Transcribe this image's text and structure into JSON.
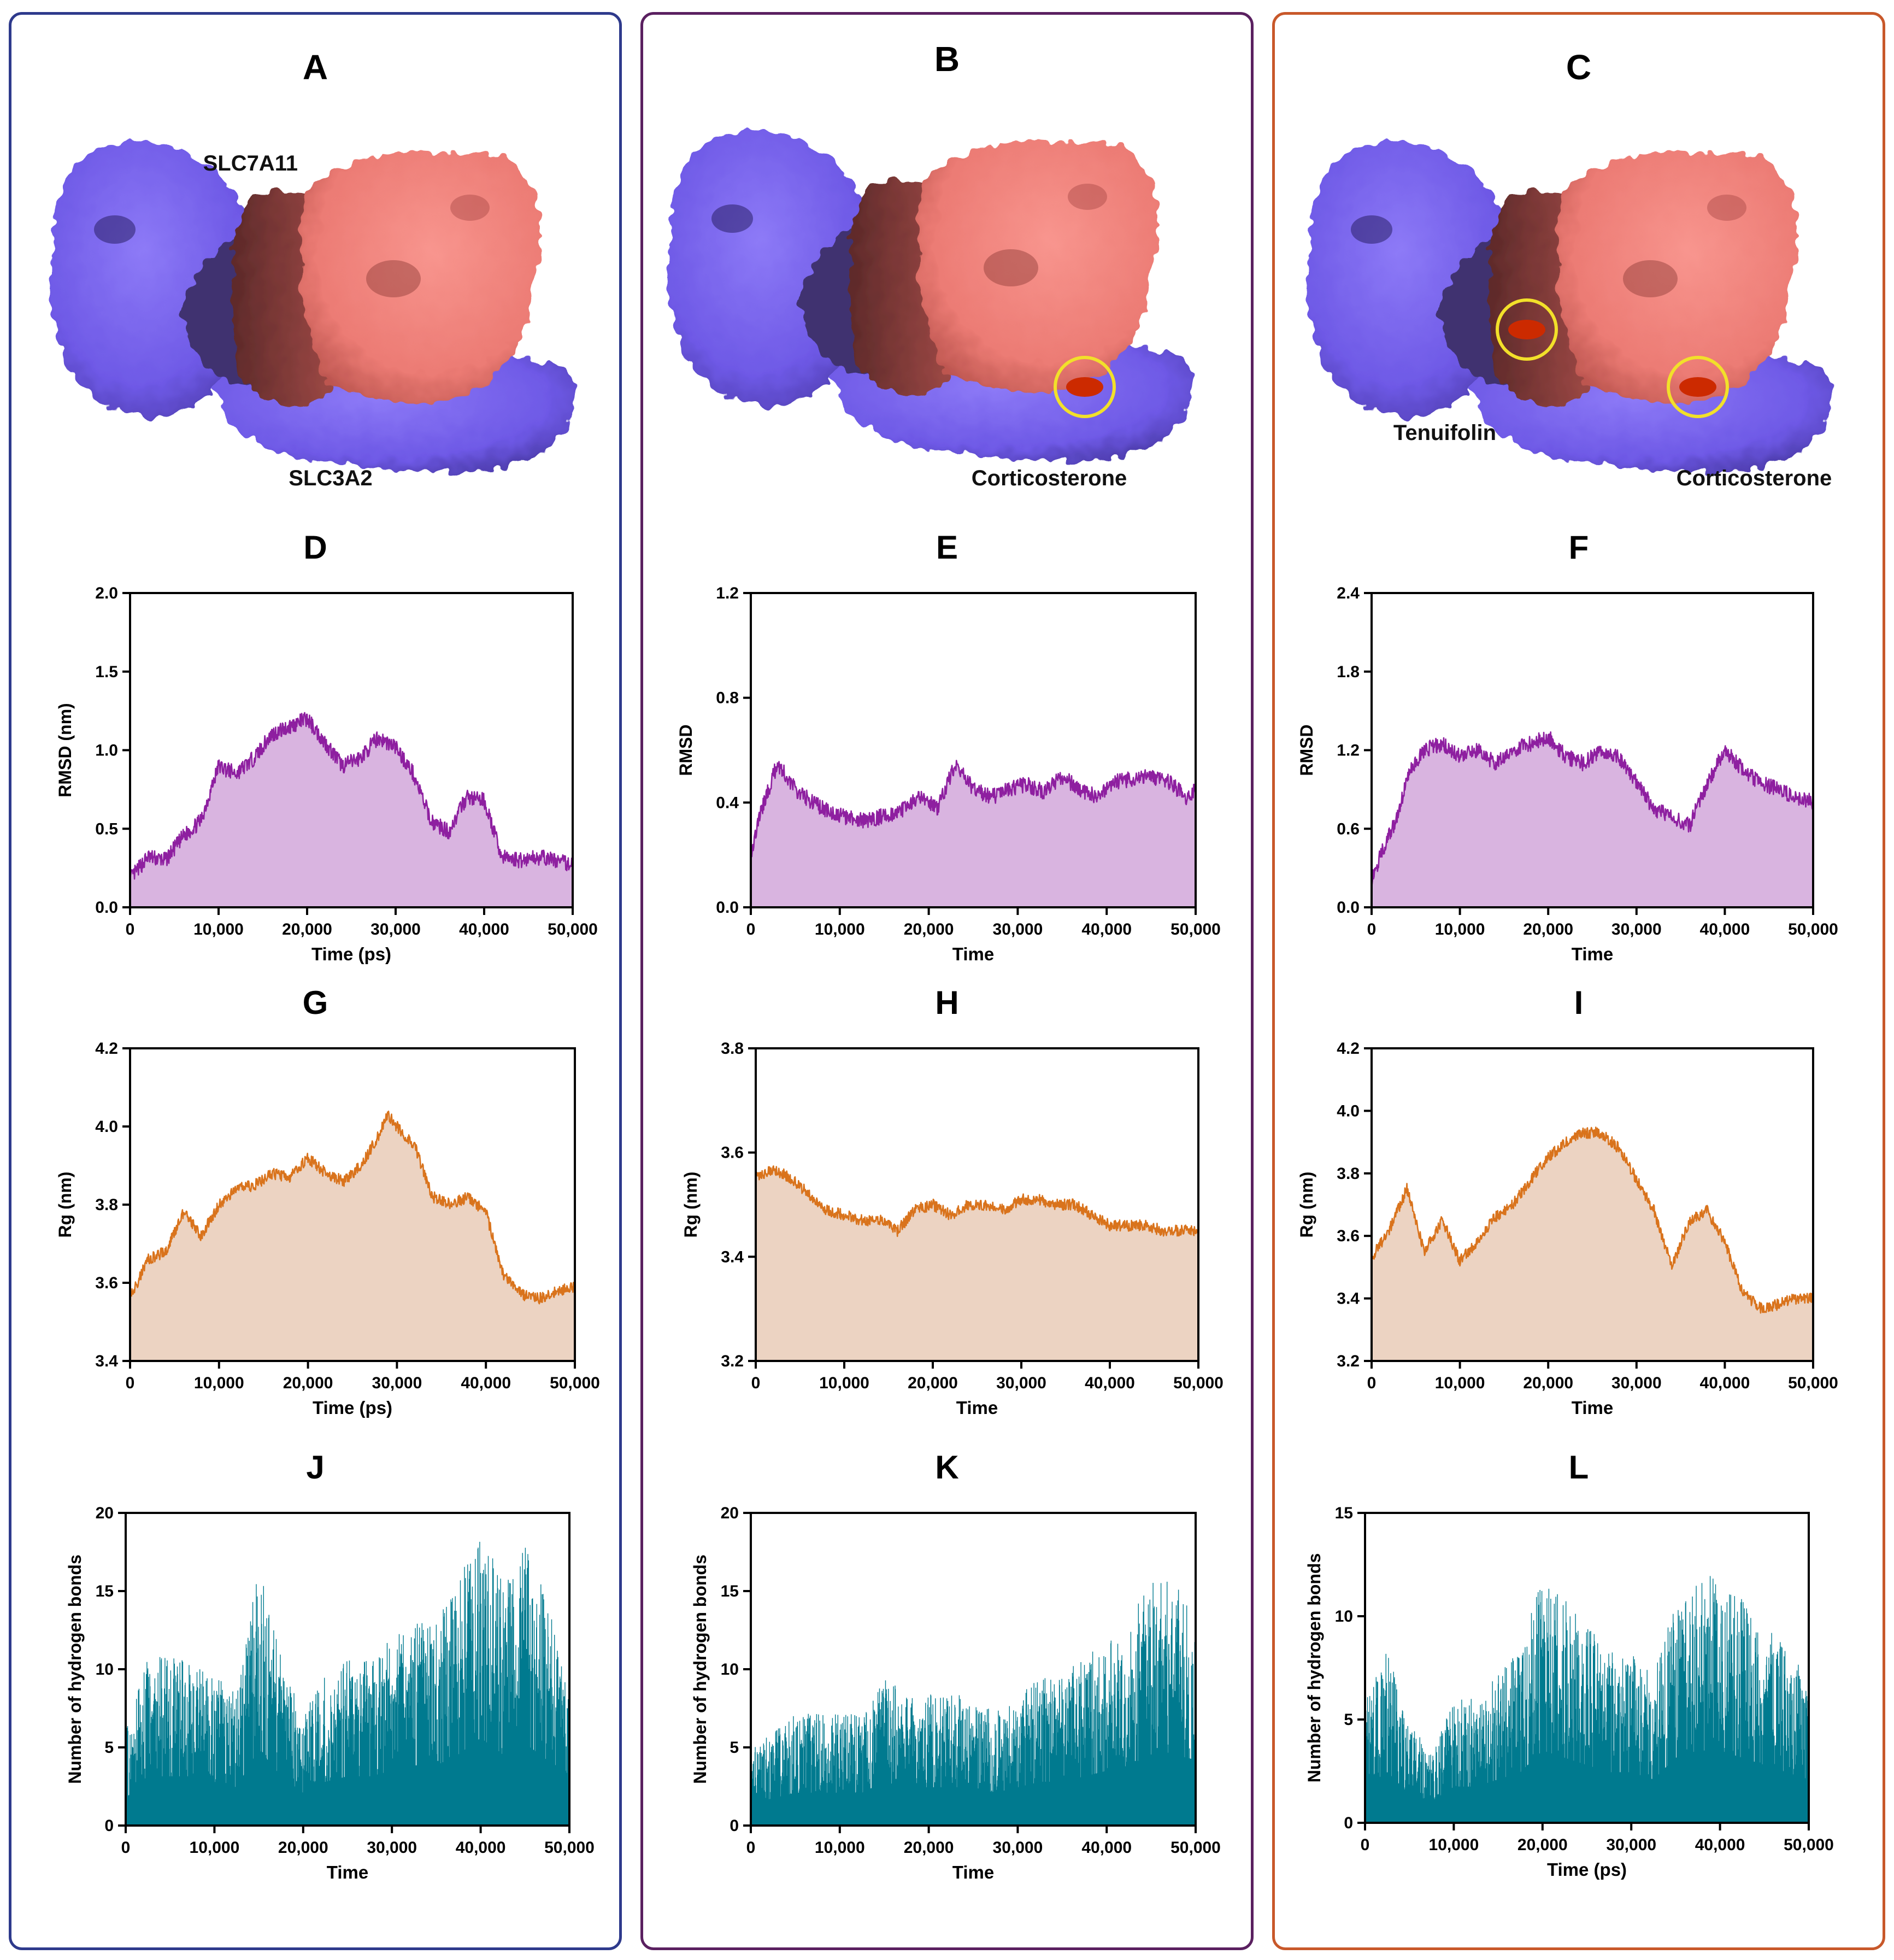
{
  "colors": {
    "frame_a": "#2e3a8c",
    "frame_b": "#5a2060",
    "frame_c": "#c8582a",
    "rmsd_line": "#8e1fa0",
    "rmsd_fill": "#d9b4e0",
    "rg_line": "#d9731c",
    "rg_fill": "#ecd3c2",
    "hbond_fill": "#007a8f",
    "protein_blue": "#7c66f0",
    "protein_salmon": "#f0807a",
    "ligand": "#cc2a00",
    "highlight_circle": "#f2e02a"
  },
  "structures": [
    {
      "letter": "A",
      "labels": [
        "SLC7A11",
        "SLC3A2"
      ],
      "ligand_sites": 0
    },
    {
      "letter": "B",
      "labels": [
        "Corticosterone"
      ],
      "ligand_sites": 1
    },
    {
      "letter": "C",
      "labels": [
        "Tenuifolin",
        "Corticosterone"
      ],
      "ligand_sites": 2
    }
  ],
  "chart_data": [
    {
      "panel": "D",
      "type": "area",
      "xlabel": "Time (ps)",
      "ylabel": "RMSD (nm)",
      "xlim": [
        0,
        50000
      ],
      "ylim": [
        0,
        2.0
      ],
      "xticks": [
        "0",
        "10,000",
        "20,000",
        "30,000",
        "40,000",
        "50,000"
      ],
      "yticks": [
        "0.0",
        "0.5",
        "1.0",
        "1.5",
        "2.0"
      ],
      "x": [
        0,
        2000,
        4000,
        6000,
        8000,
        10000,
        12000,
        14000,
        16000,
        18000,
        20000,
        22000,
        24000,
        26000,
        28000,
        30000,
        32000,
        34000,
        36000,
        38000,
        40000,
        42000,
        44000,
        46000,
        48000,
        50000
      ],
      "y": [
        0.18,
        0.32,
        0.3,
        0.45,
        0.55,
        0.9,
        0.85,
        0.95,
        1.1,
        1.15,
        1.2,
        1.05,
        0.9,
        0.95,
        1.08,
        1.02,
        0.85,
        0.55,
        0.48,
        0.7,
        0.68,
        0.32,
        0.3,
        0.32,
        0.3,
        0.27
      ]
    },
    {
      "panel": "E",
      "type": "area",
      "xlabel": "Time",
      "ylabel": "RMSD",
      "xlim": [
        0,
        50000
      ],
      "ylim": [
        0,
        1.2
      ],
      "xticks": [
        "0",
        "10,000",
        "20,000",
        "30,000",
        "40,000",
        "50,000"
      ],
      "yticks": [
        "0.0",
        "0.4",
        "0.8",
        "1.2"
      ],
      "x": [
        0,
        1000,
        3000,
        5000,
        7000,
        9000,
        11000,
        13000,
        15000,
        17000,
        19000,
        21000,
        23000,
        25000,
        27000,
        29000,
        31000,
        33000,
        35000,
        37000,
        39000,
        41000,
        43000,
        45000,
        47000,
        49000,
        50000
      ],
      "y": [
        0.2,
        0.35,
        0.55,
        0.45,
        0.4,
        0.36,
        0.34,
        0.33,
        0.35,
        0.37,
        0.42,
        0.38,
        0.55,
        0.45,
        0.42,
        0.45,
        0.47,
        0.44,
        0.5,
        0.45,
        0.42,
        0.48,
        0.49,
        0.5,
        0.48,
        0.42,
        0.45
      ]
    },
    {
      "panel": "F",
      "type": "area",
      "xlabel": "Time",
      "ylabel": "RMSD",
      "xlim": [
        0,
        50000
      ],
      "ylim": [
        0,
        2.4
      ],
      "xticks": [
        "0",
        "10,000",
        "20,000",
        "30,000",
        "40,000",
        "50,000"
      ],
      "yticks": [
        "0.0",
        "0.6",
        "1.2",
        "1.8",
        "2.4"
      ],
      "x": [
        0,
        1000,
        2000,
        3000,
        4000,
        6000,
        8000,
        10000,
        12000,
        14000,
        16000,
        18000,
        20000,
        22000,
        24000,
        26000,
        28000,
        30000,
        32000,
        34000,
        36000,
        38000,
        40000,
        42000,
        44000,
        46000,
        48000,
        50000
      ],
      "y": [
        0.2,
        0.4,
        0.55,
        0.7,
        1.0,
        1.2,
        1.25,
        1.15,
        1.2,
        1.1,
        1.2,
        1.25,
        1.3,
        1.15,
        1.1,
        1.2,
        1.15,
        0.95,
        0.75,
        0.7,
        0.62,
        0.95,
        1.2,
        1.05,
        0.95,
        0.9,
        0.85,
        0.8
      ]
    },
    {
      "panel": "G",
      "type": "area",
      "xlabel": "Time (ps)",
      "ylabel": "Rg (nm)",
      "xlim": [
        0,
        50000
      ],
      "ylim": [
        3.4,
        4.2
      ],
      "xticks": [
        "0",
        "10,000",
        "20,000",
        "30,000",
        "40,000",
        "50,000"
      ],
      "yticks": [
        "3.4",
        "3.6",
        "3.8",
        "4.0",
        "4.2"
      ],
      "x": [
        0,
        2000,
        4000,
        6000,
        8000,
        10000,
        12000,
        14000,
        16000,
        18000,
        20000,
        22000,
        24000,
        26000,
        28000,
        29000,
        30000,
        32000,
        34000,
        36000,
        38000,
        40000,
        42000,
        44000,
        46000,
        48000,
        50000
      ],
      "y": [
        3.56,
        3.66,
        3.68,
        3.78,
        3.72,
        3.8,
        3.84,
        3.85,
        3.88,
        3.87,
        3.92,
        3.88,
        3.86,
        3.9,
        3.98,
        4.03,
        4.0,
        3.95,
        3.82,
        3.8,
        3.82,
        3.78,
        3.62,
        3.57,
        3.56,
        3.58,
        3.59
      ]
    },
    {
      "panel": "H",
      "type": "area",
      "xlabel": "Time",
      "ylabel": "Rg (nm)",
      "xlim": [
        0,
        50000
      ],
      "ylim": [
        3.2,
        3.8
      ],
      "xticks": [
        "0",
        "10,000",
        "20,000",
        "30,000",
        "40,000",
        "50,000"
      ],
      "yticks": [
        "3.2",
        "3.4",
        "3.6",
        "3.8"
      ],
      "x": [
        0,
        2000,
        4000,
        6000,
        8000,
        10000,
        12000,
        14000,
        16000,
        18000,
        20000,
        22000,
        24000,
        26000,
        28000,
        30000,
        32000,
        34000,
        36000,
        38000,
        40000,
        42000,
        44000,
        46000,
        48000,
        50000
      ],
      "y": [
        3.55,
        3.57,
        3.55,
        3.52,
        3.49,
        3.48,
        3.47,
        3.47,
        3.45,
        3.49,
        3.5,
        3.48,
        3.5,
        3.5,
        3.49,
        3.51,
        3.51,
        3.5,
        3.5,
        3.48,
        3.46,
        3.46,
        3.46,
        3.45,
        3.45,
        3.45
      ]
    },
    {
      "panel": "I",
      "type": "area",
      "xlabel": "Time",
      "ylabel": "Rg (nm)",
      "xlim": [
        0,
        50000
      ],
      "ylim": [
        3.2,
        4.2
      ],
      "xticks": [
        "0",
        "10,000",
        "20,000",
        "30,000",
        "40,000",
        "50,000"
      ],
      "yticks": [
        "3.2",
        "3.4",
        "3.6",
        "3.8",
        "4.0",
        "4.2"
      ],
      "x": [
        0,
        2000,
        4000,
        6000,
        8000,
        10000,
        12000,
        14000,
        16000,
        18000,
        20000,
        22000,
        24000,
        26000,
        28000,
        30000,
        32000,
        34000,
        36000,
        38000,
        40000,
        42000,
        44000,
        46000,
        48000,
        50000
      ],
      "y": [
        3.53,
        3.62,
        3.75,
        3.55,
        3.65,
        3.52,
        3.58,
        3.66,
        3.7,
        3.78,
        3.85,
        3.9,
        3.93,
        3.93,
        3.88,
        3.78,
        3.68,
        3.5,
        3.65,
        3.68,
        3.58,
        3.42,
        3.37,
        3.38,
        3.4,
        3.4
      ]
    },
    {
      "panel": "J",
      "type": "area",
      "xlabel": "Time",
      "ylabel": "Number of hydrogen bonds",
      "xlim": [
        0,
        50000
      ],
      "ylim": [
        0,
        20
      ],
      "xticks": [
        "0",
        "10,000",
        "20,000",
        "30,000",
        "40,000",
        "50,000"
      ],
      "yticks": [
        "0",
        "5",
        "10",
        "15",
        "20"
      ],
      "x": [
        0,
        2500,
        5000,
        7500,
        10000,
        12500,
        15000,
        17500,
        20000,
        22500,
        25000,
        27500,
        30000,
        32500,
        35000,
        37500,
        40000,
        42500,
        45000,
        47500,
        50000
      ],
      "y": [
        5,
        9,
        9,
        9,
        8,
        7,
        14,
        9,
        6,
        8,
        9,
        9,
        10,
        11,
        11,
        13,
        16,
        13,
        15,
        12,
        7
      ]
    },
    {
      "panel": "K",
      "type": "area",
      "xlabel": "Time",
      "ylabel": "Number of hydrogen bonds",
      "xlim": [
        0,
        50000
      ],
      "ylim": [
        0,
        20
      ],
      "xticks": [
        "0",
        "10,000",
        "20,000",
        "30,000",
        "40,000",
        "50,000"
      ],
      "yticks": [
        "0",
        "5",
        "10",
        "15",
        "20"
      ],
      "x": [
        0,
        2500,
        5000,
        7500,
        10000,
        12500,
        15000,
        17500,
        20000,
        22500,
        25000,
        27500,
        30000,
        32500,
        35000,
        37500,
        40000,
        42500,
        45000,
        47500,
        50000
      ],
      "y": [
        4,
        5,
        6,
        6,
        6,
        6,
        8,
        7,
        7,
        7,
        7,
        6,
        7,
        8,
        8,
        9,
        10,
        11,
        13,
        13,
        12
      ]
    },
    {
      "panel": "L",
      "type": "area",
      "xlabel": "Time (ps)",
      "ylabel": "Number of hydrogen bonds",
      "xlim": [
        0,
        50000
      ],
      "ylim": [
        0,
        15
      ],
      "xticks": [
        "0",
        "10,000",
        "20,000",
        "30,000",
        "40,000",
        "50,000"
      ],
      "yticks": [
        "0",
        "5",
        "10",
        "15"
      ],
      "x": [
        0,
        2500,
        5000,
        7500,
        10000,
        12500,
        15000,
        17500,
        20000,
        22500,
        25000,
        27500,
        30000,
        32500,
        35000,
        37500,
        40000,
        42500,
        45000,
        47500,
        50000
      ],
      "y": [
        5,
        7,
        4,
        3,
        5,
        5,
        6,
        7,
        10,
        9,
        8,
        7,
        7,
        6,
        9,
        10,
        10,
        9,
        8,
        7,
        6
      ]
    }
  ]
}
